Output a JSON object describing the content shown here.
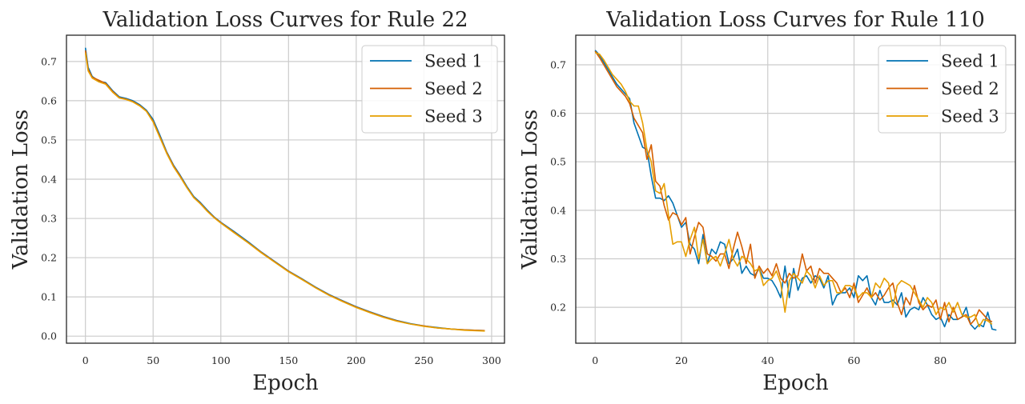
{
  "chart_data": [
    {
      "type": "line",
      "title": "Validation Loss Curves for Rule 22",
      "xlabel": "Epoch",
      "ylabel": "Validation Loss",
      "xlim": [
        -14,
        309.5
      ],
      "ylim": [
        -0.018,
        0.767
      ],
      "xticks": [
        0,
        50,
        100,
        150,
        200,
        250,
        300
      ],
      "xtick_labels": [
        "0",
        "50",
        "100",
        "150",
        "200",
        "250",
        "300"
      ],
      "yticks": [
        0,
        0.1,
        0.2,
        0.3,
        0.4,
        0.5,
        0.6,
        0.7
      ],
      "ytick_labels": [
        "0.0",
        "0.1",
        "0.2",
        "0.3",
        "0.4",
        "0.5",
        "0.6",
        "0.7"
      ],
      "grid": true,
      "legend_position": "top-right",
      "x": [
        0,
        2,
        5,
        10,
        15,
        20,
        25,
        30,
        35,
        40,
        45,
        50,
        55,
        60,
        65,
        70,
        75,
        80,
        85,
        90,
        95,
        100,
        110,
        120,
        130,
        140,
        150,
        160,
        170,
        180,
        190,
        200,
        210,
        220,
        230,
        240,
        250,
        260,
        270,
        280,
        295
      ],
      "series": [
        {
          "name": "Seed 1",
          "color": "#0072b2",
          "values": [
            0.735,
            0.685,
            0.662,
            0.65,
            0.646,
            0.626,
            0.61,
            0.606,
            0.6,
            0.59,
            0.576,
            0.552,
            0.512,
            0.47,
            0.436,
            0.41,
            0.381,
            0.356,
            0.34,
            0.321,
            0.304,
            0.29,
            0.266,
            0.241,
            0.214,
            0.19,
            0.166,
            0.146,
            0.125,
            0.106,
            0.09,
            0.075,
            0.062,
            0.05,
            0.04,
            0.032,
            0.026,
            0.022,
            0.018,
            0.016,
            0.014
          ]
        },
        {
          "name": "Seed 2",
          "color": "#d55e00",
          "values": [
            0.728,
            0.68,
            0.66,
            0.652,
            0.644,
            0.624,
            0.608,
            0.604,
            0.598,
            0.588,
            0.574,
            0.548,
            0.508,
            0.468,
            0.434,
            0.408,
            0.379,
            0.354,
            0.338,
            0.319,
            0.303,
            0.289,
            0.264,
            0.239,
            0.213,
            0.189,
            0.165,
            0.145,
            0.124,
            0.105,
            0.089,
            0.074,
            0.061,
            0.049,
            0.039,
            0.031,
            0.026,
            0.021,
            0.018,
            0.016,
            0.014
          ]
        },
        {
          "name": "Seed 3",
          "color": "#e69f00",
          "values": [
            0.722,
            0.676,
            0.658,
            0.648,
            0.642,
            0.622,
            0.607,
            0.603,
            0.597,
            0.587,
            0.573,
            0.546,
            0.506,
            0.466,
            0.432,
            0.406,
            0.378,
            0.353,
            0.337,
            0.318,
            0.302,
            0.288,
            0.263,
            0.238,
            0.212,
            0.188,
            0.164,
            0.144,
            0.123,
            0.104,
            0.088,
            0.073,
            0.06,
            0.048,
            0.038,
            0.031,
            0.025,
            0.021,
            0.018,
            0.015,
            0.013
          ]
        }
      ]
    },
    {
      "type": "line",
      "title": "Validation Loss Curves for Rule 110",
      "xlabel": "Epoch",
      "ylabel": "Validation Loss",
      "xlim": [
        -4.5,
        97.4
      ],
      "ylim": [
        0.126,
        0.761
      ],
      "xticks": [
        0,
        20,
        40,
        60,
        80
      ],
      "xtick_labels": [
        "0",
        "20",
        "40",
        "60",
        "80"
      ],
      "yticks": [
        0.2,
        0.3,
        0.4,
        0.5,
        0.6,
        0.7
      ],
      "ytick_labels": [
        "0.2",
        "0.3",
        "0.4",
        "0.5",
        "0.6",
        "0.7"
      ],
      "grid": true,
      "legend_position": "top-right",
      "x_start": 0,
      "series": [
        {
          "name": "Seed 1",
          "color": "#0072b2",
          "values": [
            0.73,
            0.72,
            0.705,
            0.69,
            0.675,
            0.66,
            0.65,
            0.64,
            0.63,
            0.58,
            0.555,
            0.53,
            0.525,
            0.47,
            0.425,
            0.425,
            0.42,
            0.43,
            0.415,
            0.39,
            0.365,
            0.375,
            0.33,
            0.32,
            0.29,
            0.35,
            0.29,
            0.32,
            0.31,
            0.335,
            0.33,
            0.29,
            0.3,
            0.32,
            0.27,
            0.285,
            0.27,
            0.265,
            0.28,
            0.26,
            0.26,
            0.255,
            0.24,
            0.22,
            0.285,
            0.22,
            0.28,
            0.235,
            0.26,
            0.265,
            0.25,
            0.265,
            0.26,
            0.24,
            0.265,
            0.205,
            0.225,
            0.23,
            0.23,
            0.24,
            0.22,
            0.265,
            0.255,
            0.265,
            0.22,
            0.205,
            0.235,
            0.21,
            0.21,
            0.215,
            0.205,
            0.23,
            0.18,
            0.195,
            0.2,
            0.195,
            0.22,
            0.205,
            0.185,
            0.175,
            0.18,
            0.16,
            0.185,
            0.175,
            0.175,
            0.18,
            0.2,
            0.165,
            0.155,
            0.165,
            0.16,
            0.19,
            0.155,
            0.153
          ]
        },
        {
          "name": "Seed 2",
          "color": "#d55e00",
          "values": [
            0.728,
            0.715,
            0.7,
            0.685,
            0.67,
            0.655,
            0.645,
            0.635,
            0.62,
            0.59,
            0.575,
            0.56,
            0.505,
            0.535,
            0.46,
            0.45,
            0.41,
            0.38,
            0.395,
            0.39,
            0.37,
            0.385,
            0.31,
            0.345,
            0.375,
            0.365,
            0.31,
            0.305,
            0.295,
            0.31,
            0.31,
            0.28,
            0.32,
            0.355,
            0.325,
            0.29,
            0.33,
            0.26,
            0.285,
            0.27,
            0.28,
            0.265,
            0.29,
            0.26,
            0.25,
            0.27,
            0.26,
            0.265,
            0.31,
            0.275,
            0.285,
            0.25,
            0.28,
            0.27,
            0.27,
            0.26,
            0.25,
            0.23,
            0.24,
            0.22,
            0.25,
            0.21,
            0.225,
            0.24,
            0.22,
            0.23,
            0.215,
            0.225,
            0.24,
            0.25,
            0.21,
            0.185,
            0.22,
            0.205,
            0.245,
            0.21,
            0.195,
            0.205,
            0.2,
            0.215,
            0.175,
            0.21,
            0.17,
            0.2,
            0.175,
            0.18,
            0.185,
            0.165,
            0.175,
            0.195,
            0.185,
            0.175,
            0.17
          ]
        },
        {
          "name": "Seed 3",
          "color": "#e69f00",
          "values": [
            0.725,
            0.722,
            0.71,
            0.695,
            0.68,
            0.67,
            0.66,
            0.645,
            0.625,
            0.615,
            0.615,
            0.58,
            0.525,
            0.5,
            0.44,
            0.435,
            0.455,
            0.39,
            0.33,
            0.335,
            0.335,
            0.305,
            0.34,
            0.365,
            0.3,
            0.34,
            0.29,
            0.3,
            0.305,
            0.285,
            0.31,
            0.34,
            0.3,
            0.285,
            0.305,
            0.3,
            0.29,
            0.275,
            0.28,
            0.245,
            0.255,
            0.26,
            0.275,
            0.25,
            0.19,
            0.255,
            0.27,
            0.26,
            0.25,
            0.275,
            0.265,
            0.24,
            0.265,
            0.245,
            0.255,
            0.255,
            0.23,
            0.23,
            0.245,
            0.245,
            0.24,
            0.22,
            0.23,
            0.23,
            0.22,
            0.25,
            0.24,
            0.26,
            0.25,
            0.2,
            0.245,
            0.255,
            0.25,
            0.245,
            0.23,
            0.215,
            0.2,
            0.22,
            0.21,
            0.185,
            0.2,
            0.195,
            0.21,
            0.19,
            0.21,
            0.185,
            0.18,
            0.18,
            0.185,
            0.16,
            0.175,
            0.172,
            0.165
          ]
        }
      ]
    }
  ]
}
